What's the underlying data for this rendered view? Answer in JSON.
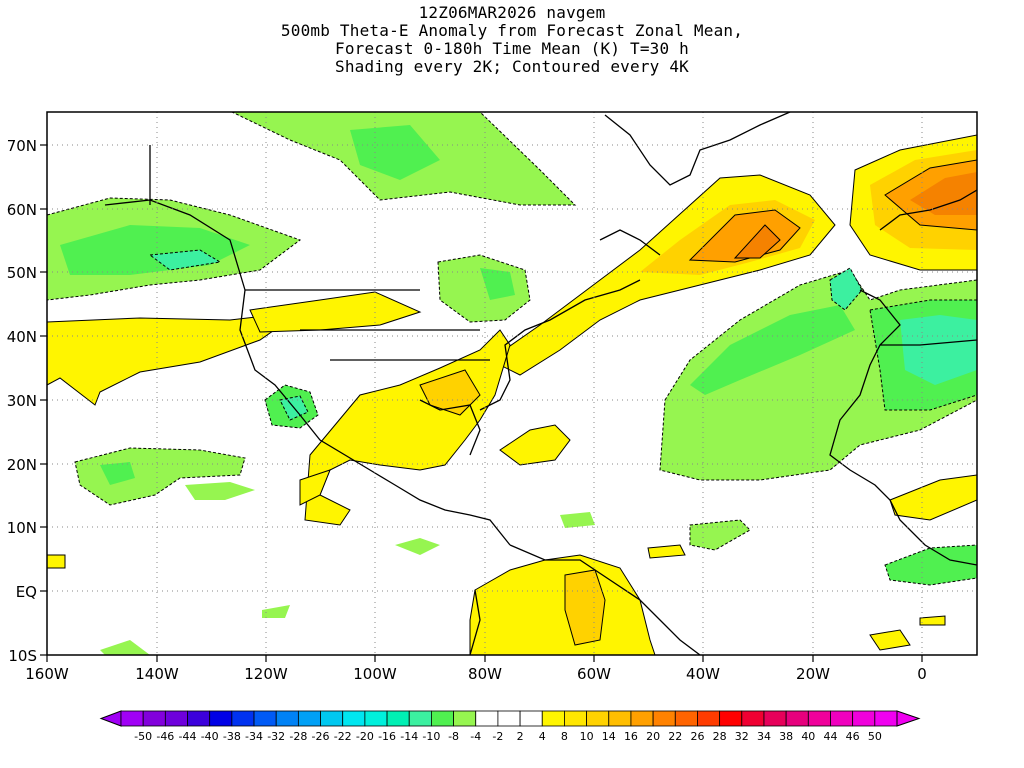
{
  "title_lines": [
    "12Z06MAR2026 navgem",
    "500mb Theta-E Anomaly from Forecast Zonal Mean,",
    "Forecast 0-180h Time Mean (K) T=30 h",
    "Shading every 2K; Contoured every 4K"
  ],
  "map": {
    "lon_range": [
      -160,
      10
    ],
    "lat_range": [
      -10,
      75
    ],
    "lon_tick_labels": [
      "160W",
      "140W",
      "120W",
      "100W",
      "80W",
      "60W",
      "40W",
      "20W",
      "0"
    ],
    "lat_tick_labels": [
      "70N",
      "60N",
      "50N",
      "40N",
      "30N",
      "20N",
      "10N",
      "EQ",
      "10S"
    ],
    "gridlines": "dotted",
    "colors": {
      "light_green": "#96f550",
      "green": "#50f050",
      "mint": "#3cf0a0",
      "yellow": "#fff500",
      "gold": "#ffd200",
      "orange": "#ffa000",
      "dark_orange": "#f58200"
    }
  },
  "colorbar": {
    "labels": [
      "-50",
      "-46",
      "-44",
      "-40",
      "-38",
      "-34",
      "-32",
      "-28",
      "-26",
      "-22",
      "-20",
      "-16",
      "-14",
      "-10",
      "-8",
      "-4",
      "-2",
      "2",
      "4",
      "8",
      "10",
      "14",
      "16",
      "20",
      "22",
      "26",
      "28",
      "32",
      "34",
      "38",
      "40",
      "44",
      "46",
      "50"
    ],
    "colors": [
      "#a000f5",
      "#8200dc",
      "#6e00dc",
      "#3c00dc",
      "#0000e6",
      "#0032f0",
      "#005af5",
      "#0082f5",
      "#00a0f5",
      "#00c8f0",
      "#00e6f0",
      "#00f0dc",
      "#00f0b4",
      "#3cf0a0",
      "#50f050",
      "#96f550",
      "#ffffff",
      "#ffffff",
      "#ffffff",
      "#fff500",
      "#ffe600",
      "#ffd200",
      "#ffbe00",
      "#ffa000",
      "#ff8200",
      "#ff6400",
      "#ff3c00",
      "#ff0000",
      "#f00032",
      "#e6005a",
      "#e6007d",
      "#f0009b",
      "#f000be",
      "#f000dc",
      "#f000f0"
    ]
  }
}
